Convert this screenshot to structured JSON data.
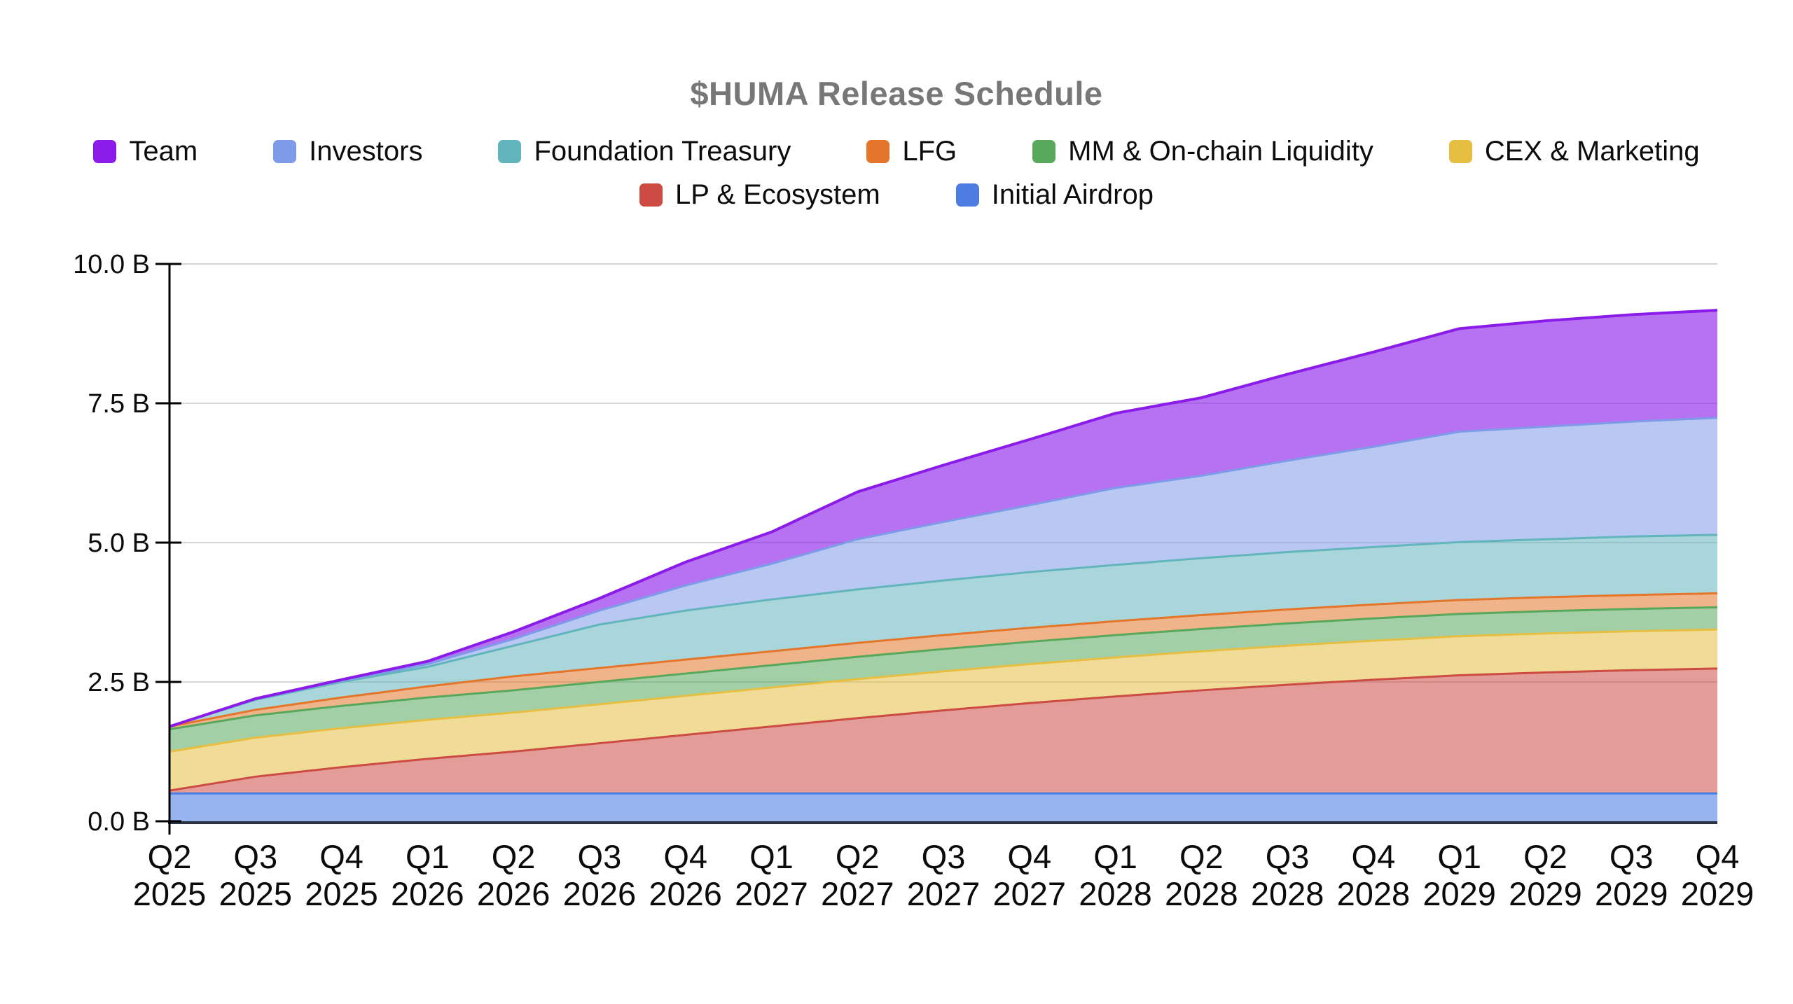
{
  "title": "$HUMA Release Schedule",
  "colors": {
    "title_text": "#777777",
    "axis": "#000000",
    "x_axis_line": "#2A3342",
    "gridline": "#D6D6D6",
    "label_text": "#0B0B0B",
    "background": "#FFFFFF"
  },
  "chart_data": {
    "type": "area",
    "stacked": true,
    "title": "$HUMA Release Schedule",
    "unit": "B = billions of tokens",
    "grid": true,
    "legend_position": "top",
    "x_categories": [
      "Q2 2025",
      "Q3 2025",
      "Q4 2025",
      "Q1 2026",
      "Q2 2026",
      "Q3 2026",
      "Q4 2026",
      "Q1 2027",
      "Q2 2027",
      "Q3 2027",
      "Q4 2027",
      "Q1 2028",
      "Q2 2028",
      "Q3 2028",
      "Q4 2028",
      "Q1 2029",
      "Q2 2029",
      "Q3 2029",
      "Q4 2029"
    ],
    "x_quarters": [
      "Q2",
      "Q3",
      "Q4",
      "Q1",
      "Q2",
      "Q3",
      "Q4",
      "Q1",
      "Q2",
      "Q3",
      "Q4",
      "Q1",
      "Q2",
      "Q3",
      "Q4",
      "Q1",
      "Q2",
      "Q3",
      "Q4"
    ],
    "x_years": [
      "2025",
      "2025",
      "2025",
      "2026",
      "2026",
      "2026",
      "2026",
      "2027",
      "2027",
      "2027",
      "2027",
      "2028",
      "2028",
      "2028",
      "2028",
      "2029",
      "2029",
      "2029",
      "2029"
    ],
    "y_axis": {
      "min": 0,
      "max": 10,
      "tick_values": [
        0,
        2.5,
        5,
        7.5,
        10
      ],
      "tick_labels": [
        "0.0 B",
        "2.5 B",
        "5.0 B",
        "7.5 B",
        "10.0 B"
      ]
    },
    "legend_rows": [
      [
        "Team",
        "Investors",
        "Foundation Treasury",
        "LFG",
        "MM & On-chain Liquidity",
        "CEX & Marketing"
      ],
      [
        "LP & Ecosystem",
        "Initial Airdrop"
      ]
    ],
    "stacking_note": "series listed bottom to top; values are cumulative released tokens in billions",
    "series": [
      {
        "name": "Initial Airdrop",
        "color": "#4E7DE1",
        "fill_opacity": 0.58,
        "values": [
          0.5,
          0.5,
          0.5,
          0.5,
          0.5,
          0.5,
          0.5,
          0.5,
          0.5,
          0.5,
          0.5,
          0.5,
          0.5,
          0.5,
          0.5,
          0.5,
          0.5,
          0.5,
          0.5
        ]
      },
      {
        "name": "LP & Ecosystem",
        "color": "#CC4B42",
        "fill_opacity": 0.55,
        "values": [
          0.05,
          0.3,
          0.47,
          0.62,
          0.75,
          0.9,
          1.05,
          1.2,
          1.35,
          1.49,
          1.62,
          1.74,
          1.85,
          1.95,
          2.04,
          2.12,
          2.17,
          2.21,
          2.24
        ]
      },
      {
        "name": "CEX & Marketing",
        "color": "#E6BF42",
        "fill_opacity": 0.55,
        "values": [
          0.7,
          0.7,
          0.7,
          0.7,
          0.7,
          0.7,
          0.7,
          0.7,
          0.7,
          0.7,
          0.7,
          0.7,
          0.7,
          0.7,
          0.7,
          0.7,
          0.7,
          0.7,
          0.7
        ]
      },
      {
        "name": "MM & On-chain Liquidity",
        "color": "#58A85C",
        "fill_opacity": 0.55,
        "values": [
          0.4,
          0.4,
          0.4,
          0.4,
          0.4,
          0.4,
          0.4,
          0.4,
          0.4,
          0.4,
          0.4,
          0.4,
          0.4,
          0.4,
          0.4,
          0.4,
          0.4,
          0.4,
          0.4
        ]
      },
      {
        "name": "LFG",
        "color": "#E4762B",
        "fill_opacity": 0.55,
        "values": [
          0.05,
          0.1,
          0.15,
          0.2,
          0.25,
          0.25,
          0.25,
          0.25,
          0.25,
          0.25,
          0.25,
          0.25,
          0.25,
          0.25,
          0.25,
          0.25,
          0.25,
          0.25,
          0.25
        ]
      },
      {
        "name": "Foundation Treasury",
        "color": "#62B5BC",
        "fill_opacity": 0.55,
        "values": [
          0.0,
          0.18,
          0.28,
          0.35,
          0.55,
          0.78,
          0.88,
          0.93,
          0.96,
          0.98,
          1.0,
          1.01,
          1.02,
          1.03,
          1.03,
          1.04,
          1.04,
          1.05,
          1.05
        ]
      },
      {
        "name": "Investors",
        "color": "#7D9BE8",
        "fill_opacity": 0.55,
        "values": [
          0.0,
          0.01,
          0.02,
          0.05,
          0.12,
          0.25,
          0.45,
          0.64,
          0.9,
          1.05,
          1.2,
          1.38,
          1.48,
          1.64,
          1.8,
          1.98,
          2.02,
          2.06,
          2.1
        ]
      },
      {
        "name": "Team",
        "color": "#8A1BE8",
        "fill_opacity": 0.62,
        "values": [
          0.0,
          0.01,
          0.02,
          0.05,
          0.13,
          0.22,
          0.42,
          0.57,
          0.85,
          1.02,
          1.18,
          1.34,
          1.4,
          1.55,
          1.7,
          1.85,
          1.9,
          1.92,
          1.93
        ]
      }
    ]
  }
}
